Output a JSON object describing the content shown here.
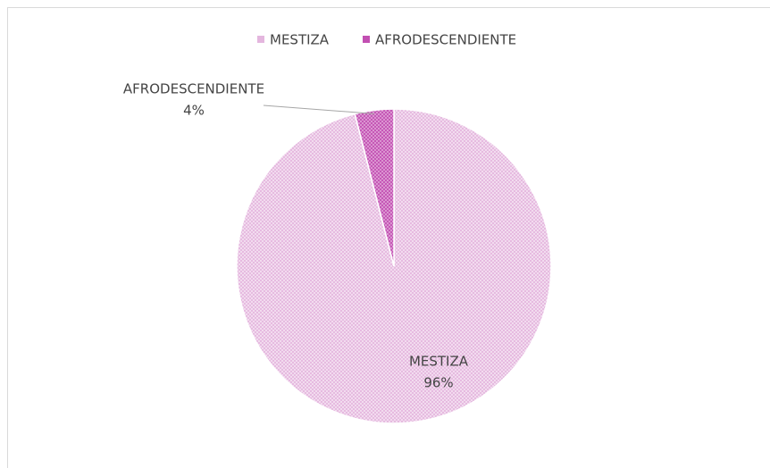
{
  "chart_data": {
    "type": "pie",
    "categories": [
      "MESTIZA",
      "AFRODESCENDIENTE"
    ],
    "values": [
      96,
      4
    ],
    "value_labels": [
      "96%",
      "4%"
    ],
    "colors": [
      "#e4b6de",
      "#c24fb2"
    ],
    "legend": "top"
  }
}
